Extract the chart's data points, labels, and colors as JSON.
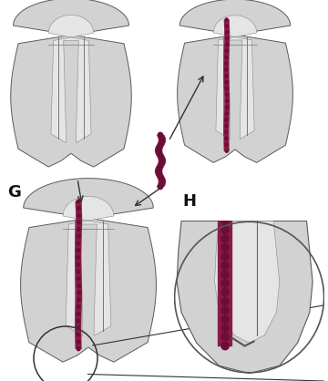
{
  "background_color": "#ffffff",
  "label_G": "G",
  "label_H": "H",
  "label_fontsize": 13,
  "label_fontweight": "bold",
  "fig_width": 3.6,
  "fig_height": 4.18,
  "tooth_color": "#d0d0d0",
  "root_canal_color": "#8b1a4a",
  "arrow_color": "#333333",
  "file_color": "#8b1a4a"
}
